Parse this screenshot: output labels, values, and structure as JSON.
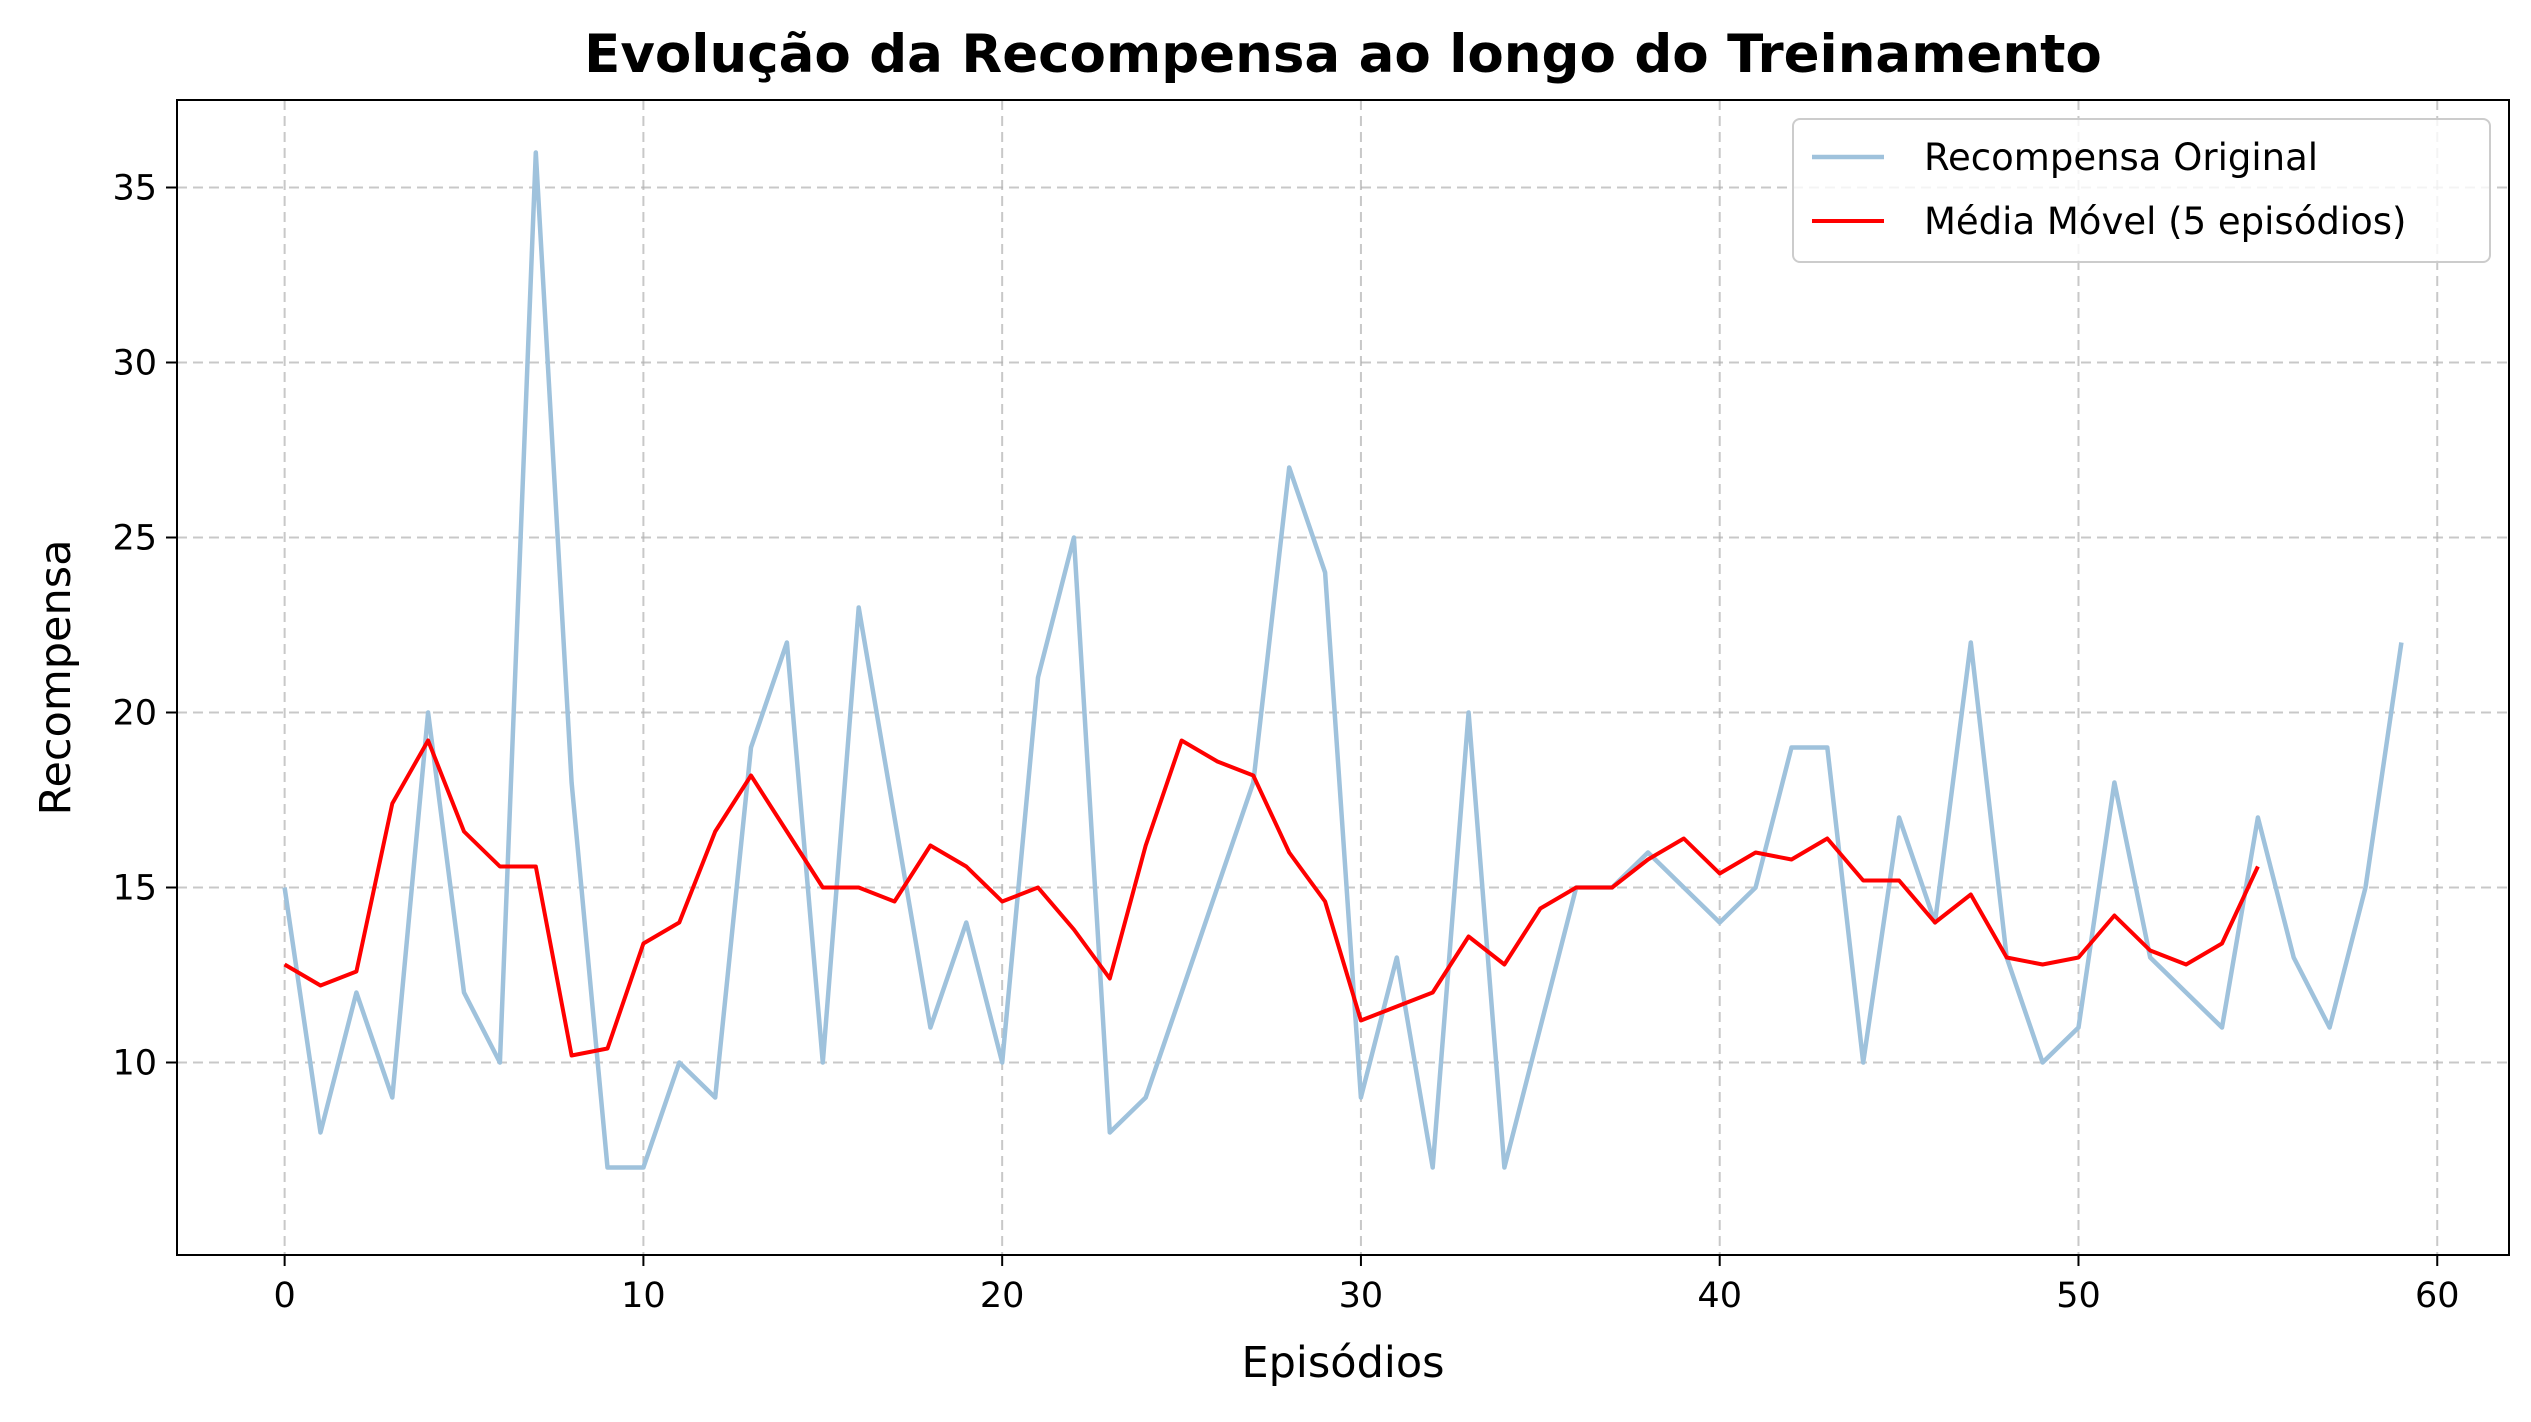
{
  "chart_data": {
    "type": "line",
    "title": "Evolução da Recompensa ao longo do Treinamento",
    "xlabel": "Episódios",
    "ylabel": "Recompensa",
    "xlim": [
      -3,
      62
    ],
    "ylim": [
      4.5,
      37.5
    ],
    "xticks": [
      0,
      10,
      20,
      30,
      40,
      50,
      60
    ],
    "yticks": [
      10,
      15,
      20,
      25,
      30,
      35
    ],
    "xtick_labels": [
      "0",
      "10",
      "20",
      "30",
      "40",
      "50",
      "60"
    ],
    "ytick_labels": [
      "10",
      "15",
      "20",
      "25",
      "30",
      "35"
    ],
    "grid": true,
    "legend_position": "top-right",
    "series": [
      {
        "name": "Recompensa Original",
        "color": "#9fc2dc",
        "x": [
          0,
          1,
          2,
          3,
          4,
          5,
          6,
          7,
          8,
          9,
          10,
          11,
          12,
          13,
          14,
          15,
          16,
          17,
          18,
          19,
          20,
          21,
          22,
          23,
          24,
          25,
          26,
          27,
          28,
          29,
          30,
          31,
          32,
          33,
          34,
          35,
          36,
          37,
          38,
          39,
          40,
          41,
          42,
          43,
          44,
          45,
          46,
          47,
          48,
          49,
          50,
          51,
          52,
          53,
          54,
          55,
          56,
          57,
          58,
          59
        ],
        "values": [
          15,
          8,
          12,
          9,
          20,
          12,
          10,
          36,
          18,
          7,
          7,
          10,
          9,
          19,
          22,
          10,
          23,
          17,
          11,
          14,
          10,
          21,
          25,
          8,
          9,
          12,
          15,
          18,
          27,
          24,
          9,
          13,
          7,
          20,
          7,
          11,
          15,
          15,
          16,
          15,
          14,
          15,
          19,
          19,
          10,
          17,
          14,
          22,
          13,
          10,
          11,
          18,
          13,
          12,
          11,
          17,
          13,
          11,
          15,
          22
        ]
      },
      {
        "name": "Média Móvel (5 episódios)",
        "color": "#ff0000",
        "x": [
          0,
          1,
          2,
          3,
          4,
          5,
          6,
          7,
          8,
          9,
          10,
          11,
          12,
          13,
          14,
          15,
          16,
          17,
          18,
          19,
          20,
          21,
          22,
          23,
          24,
          25,
          26,
          27,
          28,
          29,
          30,
          31,
          32,
          33,
          34,
          35,
          36,
          37,
          38,
          39,
          40,
          41,
          42,
          43,
          44,
          45,
          46,
          47,
          48,
          49,
          50,
          51,
          52,
          53,
          54,
          55
        ],
        "values": [
          12.8,
          12.2,
          12.6,
          17.4,
          19.2,
          16.6,
          15.6,
          15.6,
          10.2,
          10.4,
          13.4,
          14.0,
          16.6,
          18.2,
          16.6,
          15.0,
          15.0,
          14.6,
          16.2,
          15.6,
          14.6,
          15.0,
          13.8,
          12.4,
          16.2,
          19.2,
          18.6,
          18.2,
          16.0,
          14.6,
          11.2,
          11.6,
          12.0,
          13.6,
          12.8,
          14.4,
          15.0,
          15.0,
          15.8,
          16.4,
          15.4,
          16.0,
          15.8,
          16.4,
          15.2,
          15.2,
          14.0,
          14.8,
          13.0,
          12.8,
          13.0,
          14.2,
          13.2,
          12.8,
          13.4,
          15.6
        ]
      }
    ]
  }
}
